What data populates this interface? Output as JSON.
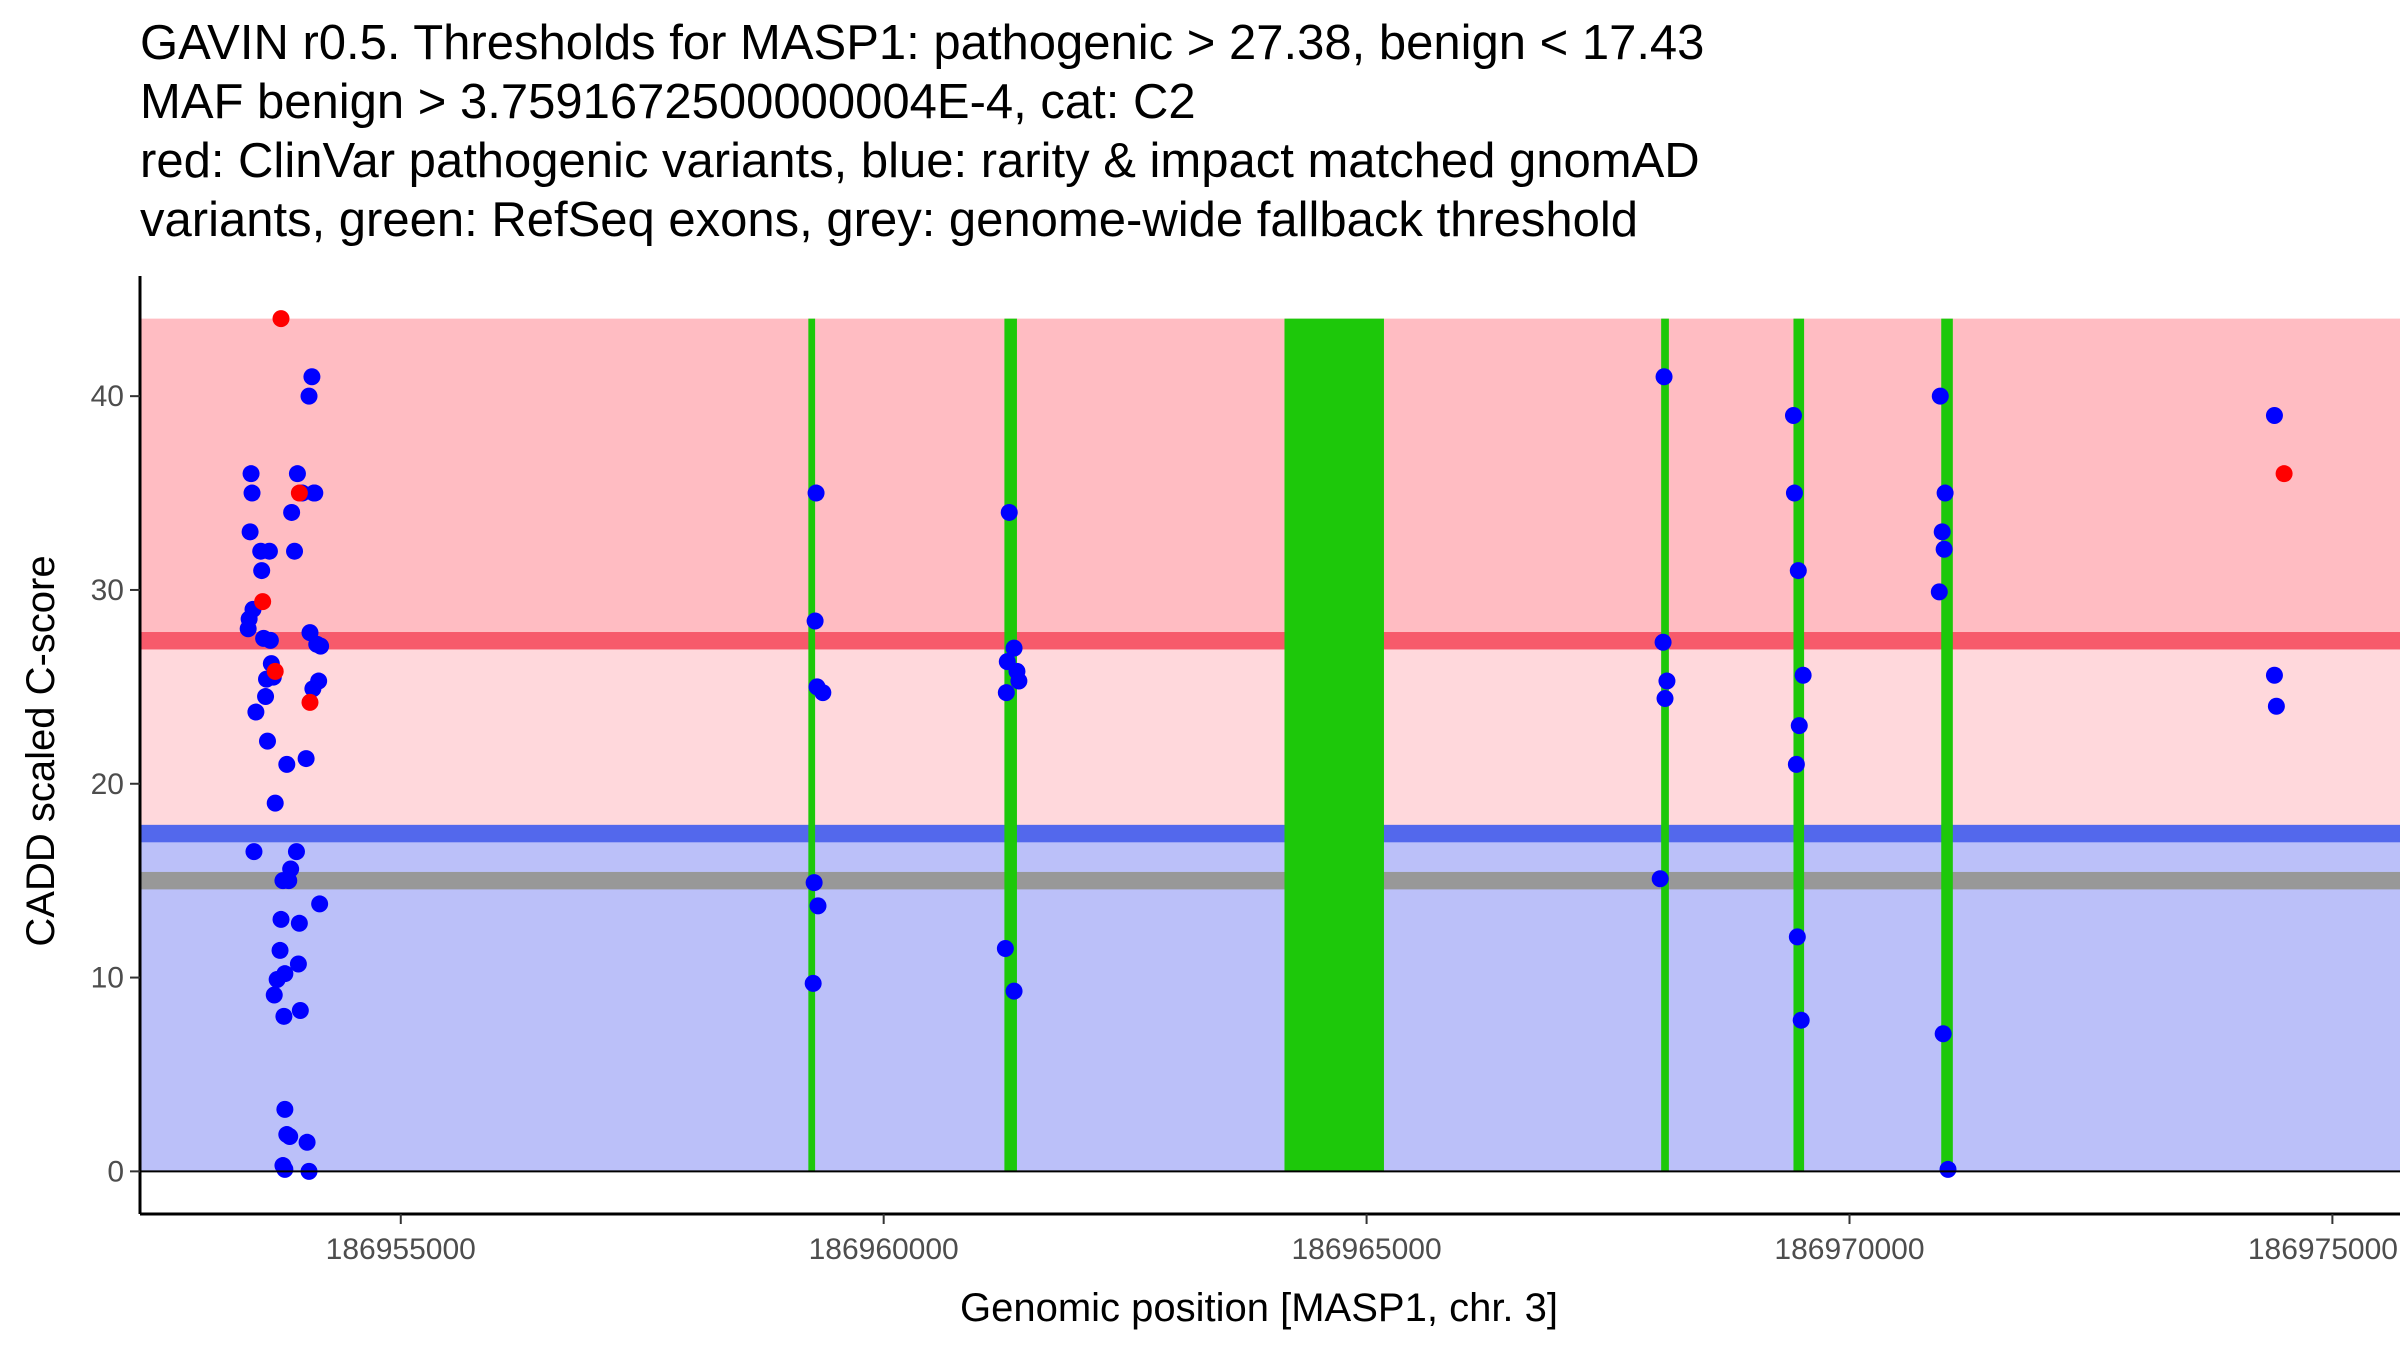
{
  "title_lines": [
    "GAVIN r0.5. Thresholds for MASP1: pathogenic > 27.38, benign < 17.43",
    "MAF benign > 3.7591672500000004E-4, cat: C2",
    "red: ClinVar pathogenic variants, blue: rarity & impact matched gnomAD",
    "variants, green: RefSeq exons, grey: genome-wide fallback threshold"
  ],
  "chart_data": {
    "type": "scatter",
    "xlabel": "Genomic position [MASP1, chr. 3]",
    "ylabel": "CADD scaled C-score",
    "xlim": [
      186952300,
      186975700
    ],
    "ylim": [
      -2.2,
      46.2
    ],
    "x_ticks": [
      186955000,
      186960000,
      186965000,
      186970000,
      186975000
    ],
    "x_tick_labels": [
      "186955000",
      "186960000",
      "186965000",
      "186970000",
      "186975000"
    ],
    "y_ticks": [
      0,
      10,
      20,
      30,
      40
    ],
    "y_tick_labels": [
      "0",
      "10",
      "20",
      "30",
      "40"
    ],
    "colors": {
      "pathogenic_band": "#ffbcc2",
      "mid_band": "#ffd8dc",
      "benign_band": "#bbc0f9",
      "pathogenic_line": "#f75a6b",
      "benign_line": "#5368ec",
      "fallback_line": "#989898",
      "exon": "#1dc80a",
      "clinvar_point": "#ff0000",
      "gnomad_point": "#0000ff"
    },
    "bands": [
      {
        "name": "pathogenic-region",
        "y0": 27.38,
        "y1": 44,
        "color_key": "pathogenic_band"
      },
      {
        "name": "intermediate-region",
        "y0": 17.43,
        "y1": 27.38,
        "color_key": "mid_band"
      },
      {
        "name": "benign-region",
        "y0": 0,
        "y1": 17.43,
        "color_key": "benign_band"
      }
    ],
    "threshold_lines": [
      {
        "name": "pathogenic-threshold-line",
        "y": 27.38,
        "half_width": 0.45,
        "color_key": "pathogenic_line"
      },
      {
        "name": "benign-threshold-line",
        "y": 17.43,
        "half_width": 0.45,
        "color_key": "benign_line"
      },
      {
        "name": "fallback-threshold-line",
        "y": 15.0,
        "half_width": 0.45,
        "color_key": "fallback_line"
      }
    ],
    "exons": [
      {
        "start": 186959220,
        "end": 186959290
      },
      {
        "start": 186961250,
        "end": 186961380
      },
      {
        "start": 186964150,
        "end": 186965180
      },
      {
        "start": 186968050,
        "end": 186968130
      },
      {
        "start": 186969420,
        "end": 186969530
      },
      {
        "start": 186970950,
        "end": 186971070
      }
    ],
    "series": [
      {
        "name": "gnomAD matched variants",
        "color_key": "gnomad_point",
        "points": [
          [
            186953450,
            36
          ],
          [
            186953460,
            35
          ],
          [
            186953440,
            33
          ],
          [
            186953470,
            29
          ],
          [
            186953430,
            28.5
          ],
          [
            186953420,
            28
          ],
          [
            186953480,
            16.5
          ],
          [
            186953500,
            23.7
          ],
          [
            186953550,
            32
          ],
          [
            186953560,
            31
          ],
          [
            186953580,
            27.5
          ],
          [
            186953600,
            24.5
          ],
          [
            186953610,
            25.4
          ],
          [
            186953620,
            22.2
          ],
          [
            186953640,
            32
          ],
          [
            186953650,
            27.4
          ],
          [
            186953660,
            26.2
          ],
          [
            186953680,
            25.5
          ],
          [
            186953700,
            19
          ],
          [
            186953750,
            11.4
          ],
          [
            186953760,
            13
          ],
          [
            186953780,
            15
          ],
          [
            186953790,
            8
          ],
          [
            186953800,
            10.2
          ],
          [
            186953820,
            21
          ],
          [
            186953840,
            15
          ],
          [
            186953860,
            15.6
          ],
          [
            186953870,
            34
          ],
          [
            186953900,
            32
          ],
          [
            186953920,
            16.5
          ],
          [
            186953930,
            36
          ],
          [
            186953940,
            10.7
          ],
          [
            186953950,
            12.8
          ],
          [
            186953960,
            8.3
          ],
          [
            186953980,
            35
          ],
          [
            186954020,
            21.3
          ],
          [
            186954050,
            40
          ],
          [
            186954060,
            27.8
          ],
          [
            186954080,
            41
          ],
          [
            186954090,
            24.9
          ],
          [
            186954100,
            35
          ],
          [
            186954110,
            35
          ],
          [
            186954130,
            27.2
          ],
          [
            186954150,
            25.3
          ],
          [
            186954160,
            13.8
          ],
          [
            186954170,
            27.1
          ],
          [
            186953690,
            9.1
          ],
          [
            186953720,
            9.9
          ],
          [
            186953800,
            3.2
          ],
          [
            186953820,
            1.9
          ],
          [
            186953850,
            1.8
          ],
          [
            186953780,
            0.3
          ],
          [
            186953800,
            0.1
          ],
          [
            186954030,
            1.5
          ],
          [
            186954050,
            0.0
          ],
          [
            186959290,
            28.4
          ],
          [
            186959300,
            35
          ],
          [
            186959310,
            25
          ],
          [
            186959370,
            24.7
          ],
          [
            186959280,
            14.9
          ],
          [
            186959320,
            13.7
          ],
          [
            186959270,
            9.7
          ],
          [
            186961300,
            34
          ],
          [
            186961280,
            26.3
          ],
          [
            186961350,
            27
          ],
          [
            186961380,
            25.8
          ],
          [
            186961270,
            24.7
          ],
          [
            186961400,
            25.3
          ],
          [
            186961260,
            11.5
          ],
          [
            186961350,
            9.3
          ],
          [
            186968080,
            41
          ],
          [
            186968070,
            27.3
          ],
          [
            186968110,
            25.3
          ],
          [
            186968090,
            24.4
          ],
          [
            186968040,
            15.1
          ],
          [
            186969420,
            39
          ],
          [
            186969430,
            35
          ],
          [
            186969470,
            31
          ],
          [
            186969520,
            25.6
          ],
          [
            186969480,
            23
          ],
          [
            186969450,
            21
          ],
          [
            186969460,
            12.1
          ],
          [
            186969500,
            7.8
          ],
          [
            186970940,
            40
          ],
          [
            186970960,
            33
          ],
          [
            186970990,
            35
          ],
          [
            186970980,
            32.1
          ],
          [
            186970930,
            29.9
          ],
          [
            186970970,
            7.1
          ],
          [
            186971020,
            0.1
          ],
          [
            186974400,
            39
          ],
          [
            186974400,
            25.6
          ],
          [
            186974420,
            24
          ]
        ]
      },
      {
        "name": "ClinVar pathogenic variants",
        "color_key": "clinvar_point",
        "points": [
          [
            186953760,
            44
          ],
          [
            186953950,
            35
          ],
          [
            186953570,
            29.4
          ],
          [
            186953700,
            25.8
          ],
          [
            186954060,
            24.2
          ],
          [
            186974500,
            36
          ]
        ]
      }
    ]
  }
}
